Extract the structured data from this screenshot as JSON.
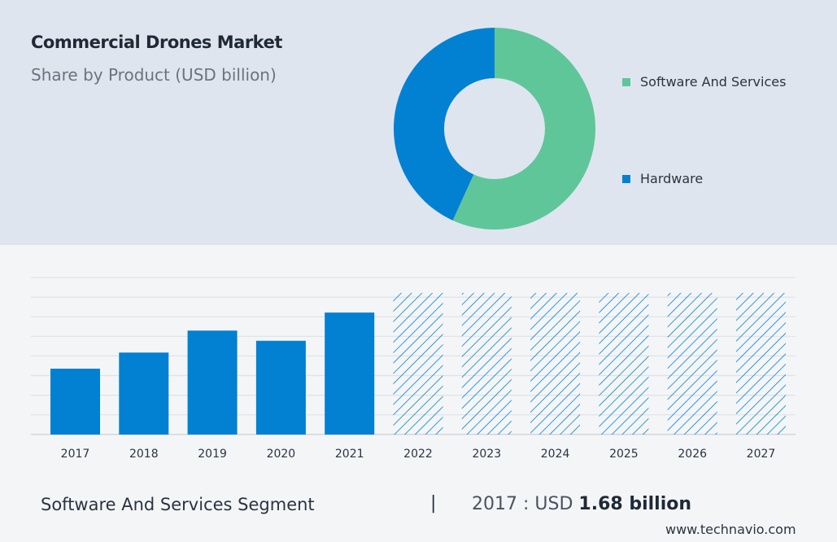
{
  "header": {
    "title": "Commercial Drones Market",
    "subtitle": "Share by Product (USD billion)"
  },
  "chart_data": [
    {
      "type": "pie",
      "donut": true,
      "slices": [
        {
          "name": "Software And Services",
          "share": 56.8,
          "color": "#5fc69a"
        },
        {
          "name": "Hardware",
          "share": 43.2,
          "color": "#0281d3"
        }
      ],
      "legend_placement": "right"
    },
    {
      "type": "bar",
      "categories": [
        "2017",
        "2018",
        "2019",
        "2020",
        "2021",
        "2022",
        "2023",
        "2024",
        "2025",
        "2026",
        "2027"
      ],
      "values": [
        1.68,
        2.09,
        2.65,
        2.39,
        3.11,
        null,
        null,
        null,
        null,
        null,
        null
      ],
      "forecast": [
        false,
        false,
        false,
        false,
        false,
        true,
        true,
        true,
        true,
        true,
        true
      ],
      "forecast_placeholder_value": 3.61,
      "ylim": [
        0,
        4.0
      ],
      "grid": true,
      "color": "#0281d3",
      "forecast_style": "hatched"
    }
  ],
  "footer": {
    "segment": "Software And Services Segment",
    "separator": "|",
    "year_label": "2017 : USD",
    "value": "1.68 billion",
    "site": "www.technavio.com"
  }
}
